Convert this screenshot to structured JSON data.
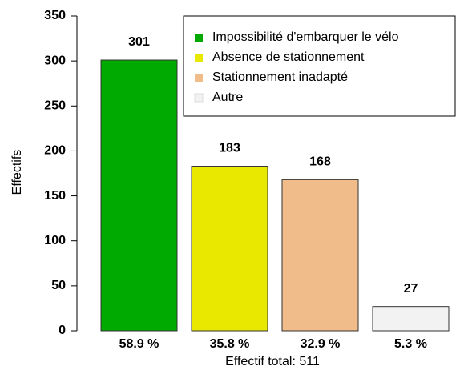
{
  "chart_data": {
    "type": "bar",
    "categories": [
      "Impossibilité d'embarquer le vélo",
      "Absence de stationnement",
      "Stationnement inadapté",
      "Autre"
    ],
    "values": [
      301,
      183,
      168,
      27
    ],
    "colors": [
      "#00aa00",
      "#e8e800",
      "#f0bc8a",
      "#f2f2f2"
    ],
    "bar_labels": [
      "58.9 %",
      "35.8 %",
      "32.9 %",
      "5.3 %"
    ],
    "xlabel": "Effectif total: 511",
    "ylabel": "Effectifs",
    "ylim": [
      0,
      350
    ],
    "yticks": [
      0,
      50,
      100,
      150,
      200,
      250,
      300,
      350
    ],
    "legend": "top-right"
  }
}
